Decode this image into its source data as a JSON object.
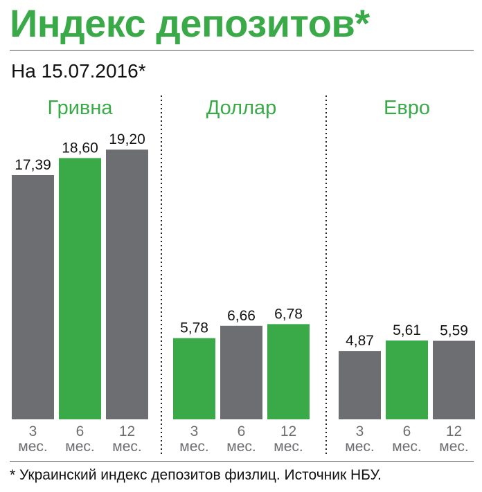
{
  "title": "Индекс депозитов*",
  "subtitle": "На 15.07.2016*",
  "footnote": "* Украинский индекс депозитов физлиц. Источник НБУ.",
  "colors": {
    "accent": "#3aaa49",
    "bar_gray": "#6d6e71",
    "bar_green": "#3aaa49",
    "text": "#111111"
  },
  "chart_data": {
    "type": "bar",
    "groups": [
      {
        "name": "Гривна",
        "categories": [
          "3 мес.",
          "6 мес.",
          "12 мес."
        ],
        "values": [
          17.39,
          18.6,
          19.2
        ],
        "labels": [
          "17,39",
          "18,60",
          "19,20"
        ],
        "highlight": [
          false,
          true,
          false
        ]
      },
      {
        "name": "Доллар",
        "categories": [
          "3 мес.",
          "6 мес.",
          "12 мес."
        ],
        "values": [
          5.78,
          6.66,
          6.78
        ],
        "labels": [
          "5,78",
          "6,66",
          "6,78"
        ],
        "highlight": [
          true,
          false,
          true
        ]
      },
      {
        "name": "Евро",
        "categories": [
          "3 мес.",
          "6 мес.",
          "12 мес."
        ],
        "values": [
          4.87,
          5.61,
          5.59
        ],
        "labels": [
          "4,87",
          "5,61",
          "5,59"
        ],
        "highlight": [
          false,
          true,
          false
        ]
      }
    ],
    "category_parts": [
      [
        "3",
        "мес."
      ],
      [
        "6",
        "мес."
      ],
      [
        "12",
        "мес."
      ]
    ],
    "ylim": [
      0,
      20
    ],
    "grid": false,
    "legend": "none"
  }
}
